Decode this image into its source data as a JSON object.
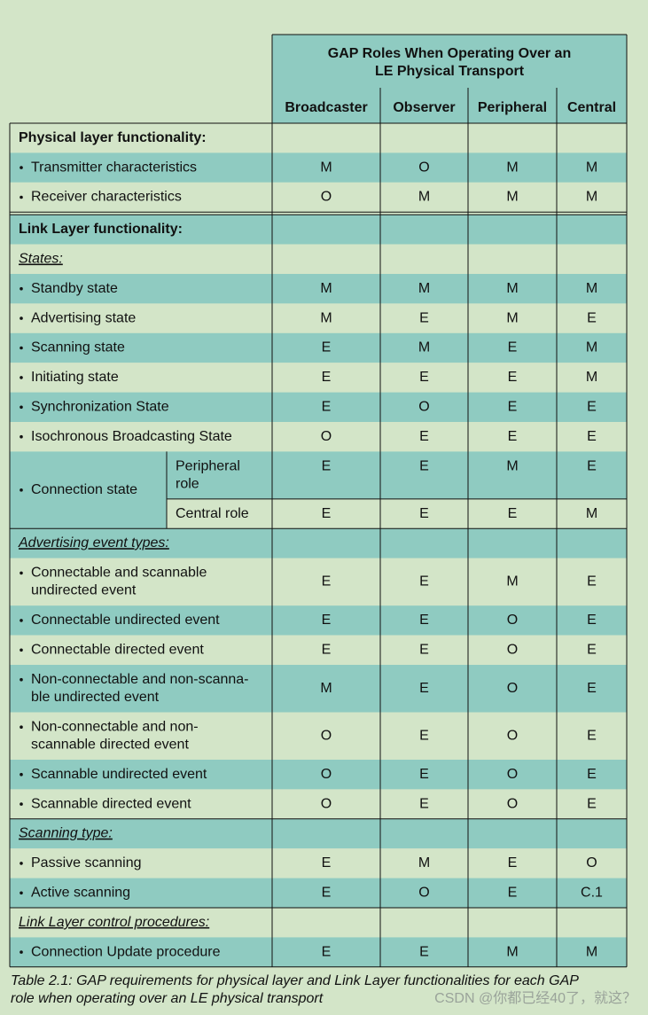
{
  "header": {
    "title": [
      "GAP Roles When Operating Over an",
      "LE Physical Transport"
    ],
    "columns": [
      "Broadcaster",
      "Observer",
      "Peripheral",
      "Central"
    ]
  },
  "sections": [
    {
      "heading": "Physical layer functionality:",
      "rows": [
        {
          "label": [
            "Transmitter characteristics"
          ],
          "values": [
            "M",
            "O",
            "M",
            "M"
          ]
        },
        {
          "label": [
            "Receiver characteristics"
          ],
          "values": [
            "O",
            "M",
            "M",
            "M"
          ]
        }
      ]
    },
    {
      "heading": "Link Layer functionality:",
      "subsections": [
        {
          "heading": "States:",
          "rows": [
            {
              "label": [
                "Standby state"
              ],
              "values": [
                "M",
                "M",
                "M",
                "M"
              ]
            },
            {
              "label": [
                "Advertising state"
              ],
              "values": [
                "M",
                "E",
                "M",
                "E"
              ]
            },
            {
              "label": [
                "Scanning state"
              ],
              "values": [
                "E",
                "M",
                "E",
                "M"
              ]
            },
            {
              "label": [
                "Initiating state"
              ],
              "values": [
                "E",
                "E",
                "E",
                "M"
              ]
            },
            {
              "label": [
                "Synchronization State"
              ],
              "values": [
                "E",
                "O",
                "E",
                "E"
              ]
            },
            {
              "label": [
                "Isochronous Broadcasting State"
              ],
              "values": [
                "O",
                "E",
                "E",
                "E"
              ]
            },
            {
              "label": [
                "Connection state"
              ],
              "subrows": [
                {
                  "label": [
                    "Peripheral",
                    "role"
                  ],
                  "values": [
                    "E",
                    "E",
                    "M",
                    "E"
                  ]
                },
                {
                  "label": [
                    "Central role"
                  ],
                  "values": [
                    "E",
                    "E",
                    "E",
                    "M"
                  ]
                }
              ]
            }
          ]
        },
        {
          "heading": "Advertising event types:",
          "rows": [
            {
              "label": [
                "Connectable and scannable",
                "undirected event"
              ],
              "values": [
                "E",
                "E",
                "M",
                "E"
              ]
            },
            {
              "label": [
                "Connectable undirected event"
              ],
              "values": [
                "E",
                "E",
                "O",
                "E"
              ]
            },
            {
              "label": [
                "Connectable directed event"
              ],
              "values": [
                "E",
                "E",
                "O",
                "E"
              ]
            },
            {
              "label": [
                "Non-connectable and non-scanna-",
                "ble undirected event"
              ],
              "values": [
                "M",
                "E",
                "O",
                "E"
              ]
            },
            {
              "label": [
                "Non-connectable and non-",
                "scannable directed event"
              ],
              "values": [
                "O",
                "E",
                "O",
                "E"
              ]
            },
            {
              "label": [
                "Scannable undirected event"
              ],
              "values": [
                "O",
                "E",
                "O",
                "E"
              ]
            },
            {
              "label": [
                "Scannable directed event"
              ],
              "values": [
                "O",
                "E",
                "O",
                "E"
              ]
            }
          ]
        },
        {
          "heading": "Scanning type:",
          "rows": [
            {
              "label": [
                "Passive scanning"
              ],
              "values": [
                "E",
                "M",
                "E",
                "O"
              ]
            },
            {
              "label": [
                "Active scanning"
              ],
              "values": [
                "E",
                "O",
                "E",
                "C.1"
              ]
            }
          ]
        },
        {
          "heading": "Link Layer control procedures:",
          "rows": [
            {
              "label": [
                "Connection Update procedure"
              ],
              "values": [
                "E",
                "E",
                "M",
                "M"
              ]
            }
          ]
        }
      ]
    }
  ],
  "caption": [
    "Table 2.1:  GAP requirements for physical layer and Link Layer functionalities for each GAP",
    "role when operating over an LE physical transport"
  ],
  "watermark": "CSDN @你都已经40了，就这？"
}
